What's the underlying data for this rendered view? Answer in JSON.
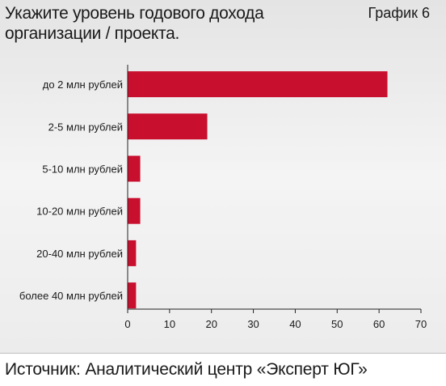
{
  "header": {
    "title_lines": [
      "Укажите уровень годового дохода",
      "организации / проекта."
    ],
    "chart_label": "График 6"
  },
  "footer": {
    "source": "Источник: Аналитический центр «Эксперт ЮГ»"
  },
  "colors": {
    "bar": "#c8102e",
    "axis": "#222222"
  },
  "chart_data": {
    "type": "bar",
    "orientation": "horizontal",
    "categories": [
      "до 2 млн рублей",
      "2-5 млн рублей",
      "5-10 млн рублей",
      "10-20 млн рублей",
      "20-40 млн рублей",
      "более 40 млн рублей"
    ],
    "values": [
      62,
      19,
      3,
      3,
      2,
      2
    ],
    "xlim": [
      0,
      70
    ],
    "xticks": [
      0,
      10,
      20,
      30,
      40,
      50,
      60,
      70
    ],
    "grid": false
  }
}
